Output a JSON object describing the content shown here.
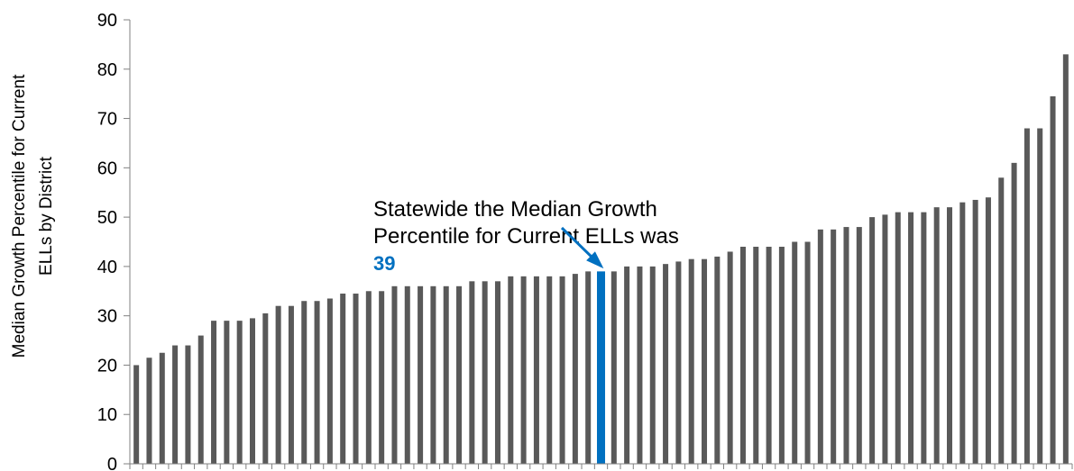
{
  "chart_data": {
    "type": "bar",
    "title": "",
    "xlabel": "",
    "ylabel_lines": [
      "Median Growth Percentile for Current",
      "ELLs by District"
    ],
    "ylim": [
      0,
      90
    ],
    "yticks": [
      0,
      10,
      20,
      30,
      40,
      50,
      60,
      70,
      80,
      90
    ],
    "grid": false,
    "values": [
      20,
      21.5,
      22.5,
      24,
      24,
      26,
      29,
      29,
      29,
      29.5,
      30.5,
      32,
      32,
      33,
      33,
      33.5,
      34.5,
      34.5,
      35,
      35,
      36,
      36,
      36,
      36,
      36,
      36,
      37,
      37,
      37,
      38,
      38,
      38,
      38,
      38,
      38.5,
      39,
      39,
      39,
      40,
      40,
      40,
      40.5,
      41,
      41.5,
      41.5,
      42,
      43,
      44,
      44,
      44,
      44,
      45,
      45,
      47.5,
      47.5,
      48,
      48,
      50,
      50.5,
      51,
      51,
      51,
      52,
      52,
      53,
      53.5,
      54,
      58,
      61,
      68,
      68,
      74.5,
      83
    ],
    "highlight_index": 36,
    "annotation": {
      "lines": [
        "Statewide the Median Growth",
        "Percentile for Current ELLs was"
      ],
      "value": "39"
    },
    "colors": {
      "bar": "#595959",
      "highlight": "#0070c0",
      "axis": "#808080",
      "arrow": "#0070c0"
    }
  }
}
